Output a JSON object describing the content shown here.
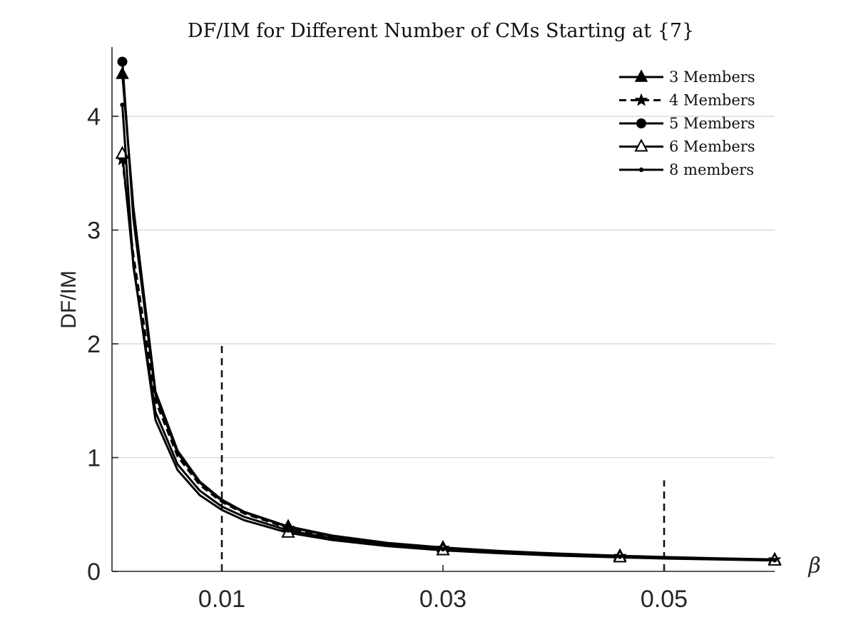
{
  "chart_data": {
    "type": "line",
    "title": "DF/IM for Different Number of CMs Starting at {7}",
    "xlabel": "β",
    "ylabel": "DF/IM",
    "xlim": [
      0,
      0.06
    ],
    "ylim": [
      0,
      4.6
    ],
    "xticks": [
      0.01,
      0.03,
      0.05
    ],
    "xtick_labels": [
      "0.01",
      "0.03",
      "0.05"
    ],
    "yticks": [
      0,
      1,
      2,
      3,
      4
    ],
    "ytick_labels": [
      "0",
      "1",
      "2",
      "3",
      "4"
    ],
    "grid": "horizontal",
    "legend_position": "top-right",
    "vlines": [
      {
        "x": 0.01,
        "ymax": 2.0
      },
      {
        "x": 0.05,
        "ymax": 0.8
      }
    ],
    "series": [
      {
        "name": "3 Members",
        "marker": "triangle-filled",
        "linestyle": "solid",
        "x": [
          0.001,
          0.002,
          0.004,
          0.006,
          0.008,
          0.01,
          0.012,
          0.016,
          0.02,
          0.025,
          0.03,
          0.035,
          0.04,
          0.046,
          0.05,
          0.055,
          0.06
        ],
        "y": [
          4.37,
          3.2,
          1.58,
          1.06,
          0.79,
          0.63,
          0.525,
          0.395,
          0.315,
          0.25,
          0.21,
          0.18,
          0.158,
          0.137,
          0.126,
          0.115,
          0.105
        ],
        "marker_x": [
          0.001,
          0.016,
          0.03,
          0.046,
          0.06
        ]
      },
      {
        "name": "4 Members",
        "marker": "star-filled",
        "linestyle": "dashed",
        "x": [
          0.001,
          0.002,
          0.004,
          0.006,
          0.008,
          0.01,
          0.012,
          0.016,
          0.02,
          0.025,
          0.03,
          0.035,
          0.04,
          0.046,
          0.05,
          0.055,
          0.06
        ],
        "y": [
          3.62,
          2.78,
          1.5,
          1.01,
          0.76,
          0.61,
          0.51,
          0.38,
          0.305,
          0.245,
          0.205,
          0.175,
          0.153,
          0.133,
          0.122,
          0.111,
          0.102
        ],
        "marker_x": [
          0.001,
          0.016,
          0.03,
          0.046,
          0.06
        ]
      },
      {
        "name": "5 Members",
        "marker": "circle-filled",
        "linestyle": "solid",
        "x": [
          0.001,
          0.002,
          0.004,
          0.006,
          0.008,
          0.01,
          0.012,
          0.016,
          0.02,
          0.025,
          0.03,
          0.035,
          0.04,
          0.046,
          0.05,
          0.055,
          0.06
        ],
        "y": [
          4.48,
          3.1,
          1.55,
          1.04,
          0.78,
          0.62,
          0.52,
          0.39,
          0.31,
          0.248,
          0.207,
          0.177,
          0.155,
          0.135,
          0.124,
          0.113,
          0.103
        ],
        "marker_x": [
          0.001
        ]
      },
      {
        "name": "6 Members",
        "marker": "triangle-open",
        "linestyle": "solid",
        "x": [
          0.001,
          0.002,
          0.004,
          0.006,
          0.008,
          0.01,
          0.012,
          0.016,
          0.02,
          0.025,
          0.03,
          0.035,
          0.04,
          0.046,
          0.05,
          0.055,
          0.06
        ],
        "y": [
          3.67,
          2.7,
          1.33,
          0.89,
          0.67,
          0.54,
          0.45,
          0.34,
          0.275,
          0.222,
          0.185,
          0.16,
          0.14,
          0.123,
          0.113,
          0.104,
          0.095
        ],
        "marker_x": [
          0.001,
          0.016,
          0.03,
          0.046,
          0.06
        ]
      },
      {
        "name": "8 members",
        "marker": "dot",
        "linestyle": "solid",
        "x": [
          0.001,
          0.002,
          0.004,
          0.006,
          0.008,
          0.01,
          0.012,
          0.016,
          0.02,
          0.025,
          0.03,
          0.035,
          0.04,
          0.046,
          0.05,
          0.055,
          0.06
        ],
        "y": [
          4.1,
          2.68,
          1.4,
          0.94,
          0.71,
          0.57,
          0.48,
          0.36,
          0.29,
          0.233,
          0.195,
          0.168,
          0.147,
          0.129,
          0.118,
          0.108,
          0.099
        ],
        "marker_x": [
          0.001,
          0.016,
          0.03,
          0.046,
          0.06
        ]
      }
    ]
  }
}
